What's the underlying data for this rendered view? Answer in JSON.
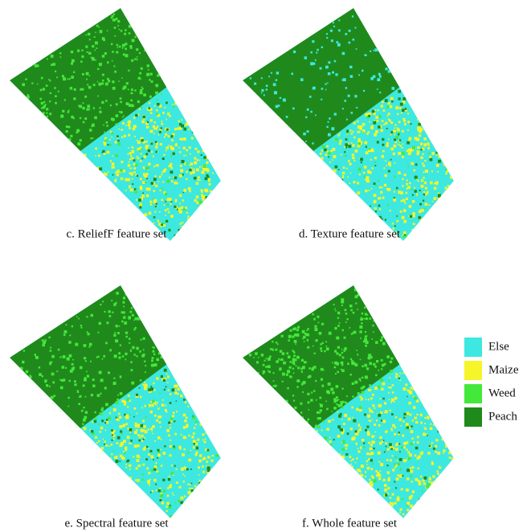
{
  "panels": [
    {
      "caption": "c. ReliefF feature set"
    },
    {
      "caption": "d. Texture feature set"
    },
    {
      "caption": "e. Spectral feature set"
    },
    {
      "caption": "f. Whole feature set"
    }
  ],
  "legend": [
    {
      "label": "Else",
      "color": "#3de8e0"
    },
    {
      "label": "Maize",
      "color": "#f5f529"
    },
    {
      "label": "Weed",
      "color": "#44e83a"
    },
    {
      "label": "Peach",
      "color": "#1f8a1b"
    }
  ]
}
